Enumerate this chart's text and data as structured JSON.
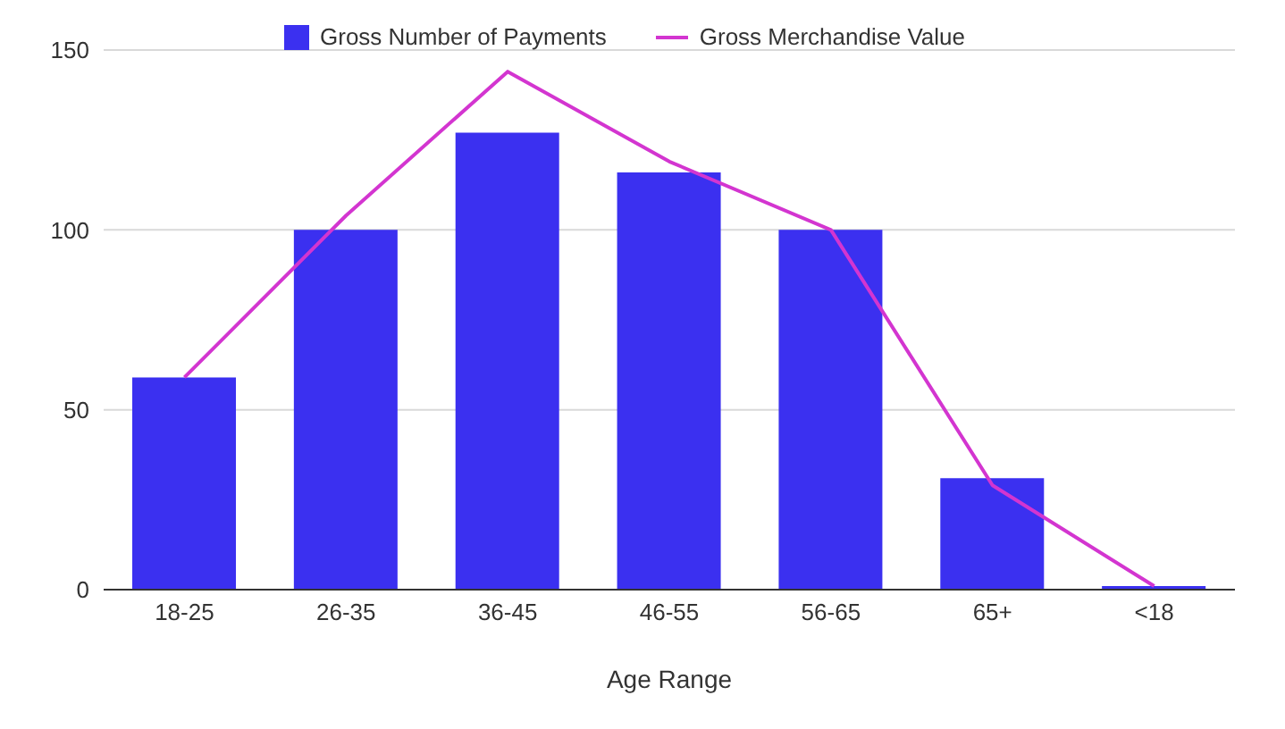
{
  "chart_data": {
    "type": "bar",
    "xlabel": "Age Range",
    "categories": [
      "18-25",
      "26-35",
      "36-45",
      "46-55",
      "56-65",
      "65+",
      "<18"
    ],
    "series": [
      {
        "name": "Gross Number of Payments",
        "color": "#3b30f0",
        "values": [
          59,
          100,
          127,
          116,
          100,
          31,
          1
        ]
      },
      {
        "name": "Gross Merchandise Value",
        "type": "line",
        "color": "#d335d0",
        "values": [
          59,
          104,
          144,
          119,
          100,
          29,
          1
        ]
      }
    ],
    "ylim": [
      0,
      150
    ],
    "yticks": [
      0,
      50,
      100,
      150
    ],
    "grid": "y",
    "legend": "top",
    "marker": "none"
  }
}
